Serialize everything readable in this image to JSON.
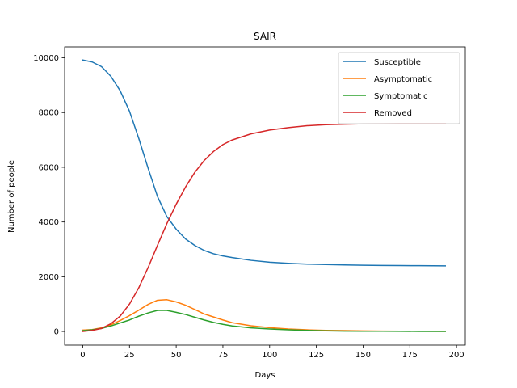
{
  "chart_data": {
    "type": "line",
    "title": "SAIR",
    "xlabel": "Days",
    "ylabel": "Number of people",
    "xlim": [
      -9.7,
      204.7
    ],
    "ylim": [
      -500,
      10400
    ],
    "xticks": [
      0,
      25,
      50,
      75,
      100,
      125,
      150,
      175,
      200
    ],
    "yticks": [
      0,
      2000,
      4000,
      6000,
      8000,
      10000
    ],
    "grid": false,
    "legend_position": "top-right",
    "colors": {
      "axes": "#000000",
      "background": "#ffffff"
    },
    "series": [
      {
        "name": "Susceptible",
        "color": "#1f77b4",
        "x": [
          0,
          5,
          10,
          15,
          20,
          25,
          30,
          35,
          40,
          45,
          50,
          55,
          60,
          65,
          70,
          75,
          80,
          90,
          100,
          110,
          120,
          130,
          140,
          150,
          160,
          170,
          180,
          194
        ],
        "y": [
          9920,
          9850,
          9680,
          9330,
          8800,
          8050,
          7050,
          5960,
          4930,
          4200,
          3740,
          3380,
          3140,
          2960,
          2840,
          2760,
          2700,
          2600,
          2530,
          2490,
          2460,
          2445,
          2430,
          2420,
          2415,
          2410,
          2405,
          2400
        ]
      },
      {
        "name": "Asymptomatic",
        "color": "#ff7f0e",
        "x": [
          0,
          5,
          10,
          15,
          20,
          25,
          30,
          35,
          40,
          45,
          50,
          55,
          60,
          65,
          70,
          75,
          80,
          90,
          100,
          110,
          120,
          130,
          140,
          150,
          160,
          170,
          180,
          194
        ],
        "y": [
          50,
          70,
          130,
          240,
          400,
          580,
          780,
          990,
          1140,
          1160,
          1080,
          960,
          800,
          640,
          530,
          420,
          320,
          210,
          140,
          90,
          60,
          40,
          30,
          20,
          15,
          10,
          8,
          5
        ]
      },
      {
        "name": "Symptomatic",
        "color": "#2ca02c",
        "x": [
          0,
          5,
          10,
          15,
          20,
          25,
          30,
          35,
          40,
          45,
          50,
          55,
          60,
          65,
          70,
          75,
          80,
          90,
          100,
          110,
          120,
          130,
          140,
          150,
          160,
          170,
          180,
          194
        ],
        "y": [
          30,
          60,
          110,
          200,
          310,
          420,
          560,
          680,
          770,
          770,
          700,
          620,
          520,
          420,
          330,
          260,
          200,
          130,
          90,
          60,
          40,
          25,
          15,
          10,
          8,
          5,
          3,
          2
        ]
      },
      {
        "name": "Removed",
        "color": "#d62728",
        "x": [
          0,
          5,
          10,
          15,
          20,
          25,
          30,
          35,
          40,
          45,
          50,
          55,
          60,
          65,
          70,
          75,
          80,
          90,
          100,
          110,
          120,
          130,
          140,
          150,
          160,
          170,
          180,
          194
        ],
        "y": [
          0,
          40,
          110,
          280,
          560,
          1000,
          1600,
          2340,
          3150,
          3940,
          4650,
          5280,
          5820,
          6250,
          6580,
          6830,
          7000,
          7220,
          7360,
          7450,
          7520,
          7555,
          7575,
          7590,
          7595,
          7600,
          7600,
          7600
        ]
      }
    ]
  }
}
